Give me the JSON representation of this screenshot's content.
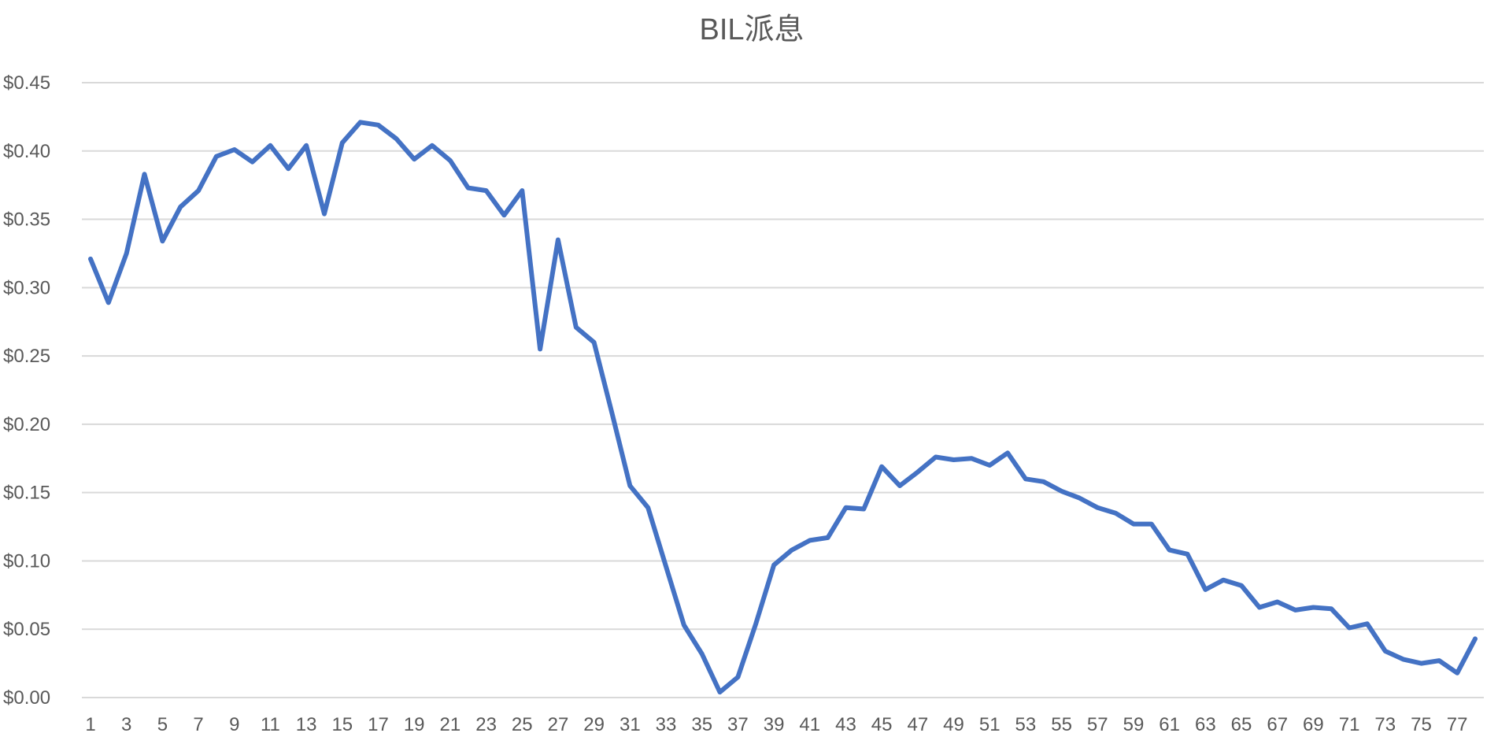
{
  "chart_data": {
    "type": "line",
    "title": "BIL派息",
    "xlabel": "",
    "ylabel": "",
    "ylim": [
      0,
      0.45
    ],
    "y_ticks": [
      "$0.00",
      "$0.05",
      "$0.10",
      "$0.15",
      "$0.20",
      "$0.25",
      "$0.30",
      "$0.35",
      "$0.40",
      "$0.45"
    ],
    "x_tick_labels": [
      "1",
      "3",
      "5",
      "7",
      "9",
      "11",
      "13",
      "15",
      "17",
      "19",
      "21",
      "23",
      "25",
      "27",
      "29",
      "31",
      "33",
      "35",
      "37",
      "39",
      "41",
      "43",
      "45",
      "47",
      "49",
      "51",
      "53",
      "55",
      "57",
      "59",
      "61",
      "63",
      "65",
      "67",
      "69",
      "71",
      "73",
      "75",
      "77"
    ],
    "grid": true,
    "legend": "none",
    "line_color": "#4472C4",
    "grid_color": "#D9D9D9",
    "x": [
      1,
      2,
      3,
      4,
      5,
      6,
      7,
      8,
      9,
      10,
      11,
      12,
      13,
      14,
      15,
      16,
      17,
      18,
      19,
      20,
      21,
      22,
      23,
      24,
      25,
      26,
      27,
      28,
      29,
      30,
      31,
      32,
      33,
      34,
      35,
      36,
      37,
      38,
      39,
      40,
      41,
      42,
      43,
      44,
      45,
      46,
      47,
      48,
      49,
      50,
      51,
      52,
      53,
      54,
      55,
      56,
      57,
      58,
      59,
      60,
      61,
      62,
      63,
      64,
      65,
      66,
      67,
      68,
      69,
      70,
      71,
      72,
      73,
      74,
      75,
      76,
      77,
      78
    ],
    "values": [
      0.321,
      0.289,
      0.325,
      0.383,
      0.334,
      0.359,
      0.371,
      0.396,
      0.401,
      0.392,
      0.404,
      0.387,
      0.404,
      0.354,
      0.406,
      0.421,
      0.419,
      0.409,
      0.394,
      0.404,
      0.393,
      0.373,
      0.371,
      0.353,
      0.371,
      0.255,
      0.335,
      0.271,
      0.26,
      0.208,
      0.155,
      0.139,
      0.096,
      0.053,
      0.032,
      0.004,
      0.015,
      0.054,
      0.097,
      0.108,
      0.115,
      0.117,
      0.139,
      0.138,
      0.169,
      0.155,
      0.165,
      0.176,
      0.174,
      0.175,
      0.17,
      0.179,
      0.16,
      0.158,
      0.151,
      0.146,
      0.139,
      0.135,
      0.127,
      0.127,
      0.108,
      0.105,
      0.079,
      0.086,
      0.082,
      0.066,
      0.07,
      0.064,
      0.066,
      0.065,
      0.051,
      0.054,
      0.034,
      0.028,
      0.025,
      0.027,
      0.018,
      0.043
    ]
  }
}
